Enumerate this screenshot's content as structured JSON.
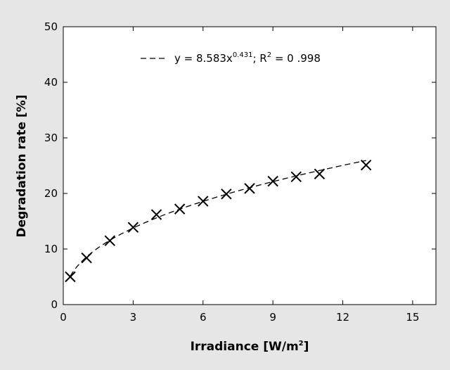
{
  "chart_data": {
    "type": "scatter",
    "xlabel": "Irradiance  [W/m",
    "xlabel_sup": "2",
    "xlabel_end": "]",
    "ylabel": "Degradation rate  [%]",
    "xlim": [
      0,
      16
    ],
    "ylim": [
      0,
      50
    ],
    "x_ticks": [
      0,
      3,
      6,
      9,
      12,
      15
    ],
    "y_ticks": [
      0,
      10,
      20,
      30,
      40,
      50
    ],
    "marker": "x",
    "series": [
      {
        "x": [
          0.3,
          1,
          2,
          3,
          4,
          5,
          6,
          7,
          8,
          9,
          10,
          11,
          13
        ],
        "y": [
          5.0,
          8.4,
          11.5,
          13.9,
          16.2,
          17.2,
          18.6,
          19.9,
          20.9,
          22.2,
          23.0,
          23.5,
          25.1
        ]
      }
    ],
    "fit": {
      "style": "dashed",
      "coefficient": 8.583,
      "exponent": 0.431,
      "x_range": [
        0.3,
        13
      ],
      "legend": {
        "prefix": "y = 8.583x",
        "exp_text": "0.431",
        "mid": "; R",
        "r_sup": "2",
        "suffix": " = 0 .998"
      }
    },
    "grid": false
  }
}
